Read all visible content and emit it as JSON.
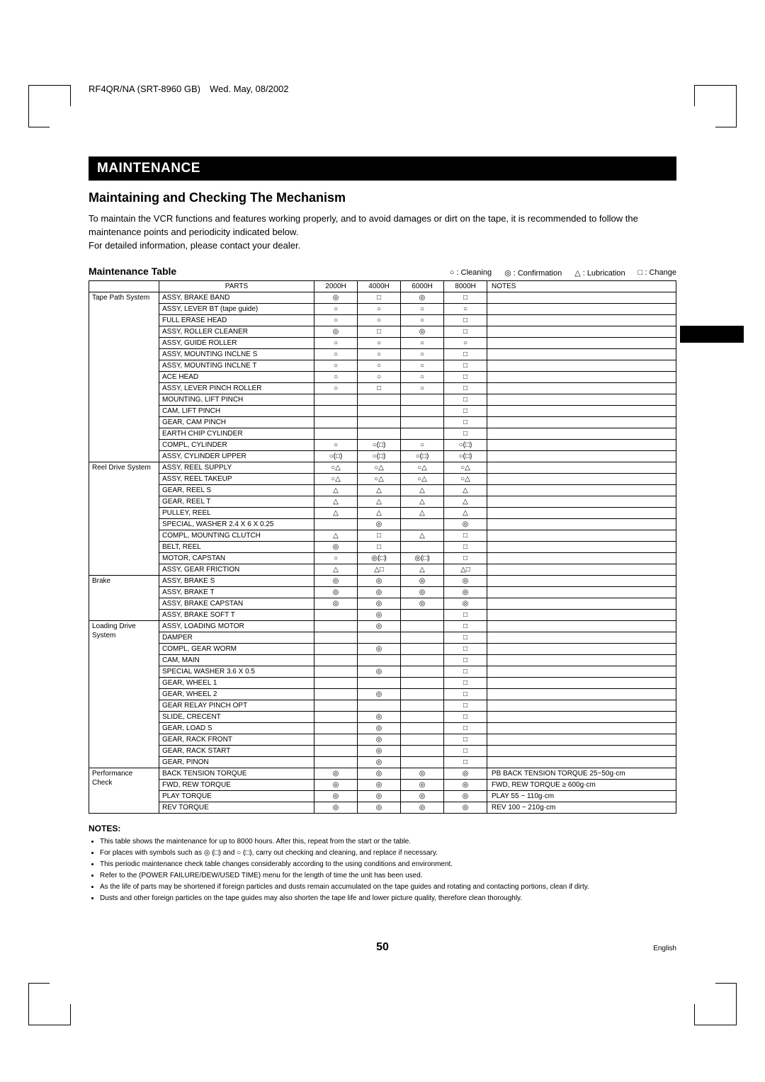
{
  "header": "RF4QR/NA (SRT-8960 GB) Wed. May, 08/2002",
  "section": "MAINTENANCE",
  "subtitle": "Maintaining and Checking The Mechanism",
  "intro": "To maintain the VCR functions and features working properly, and to avoid damages or dirt on the tape, it is recommended to follow the maintenance points and periodicity indicated below.\nFor detailed information, please contact your dealer.",
  "tableTitle": "Maintenance Table",
  "legend": {
    "cleaning": "○ : Cleaning",
    "confirmation": "◎ : Confirmation",
    "lubrication": "△ : Lubrication",
    "change": "□ : Change"
  },
  "columns": [
    "",
    "PARTS",
    "2000H",
    "4000H",
    "6000H",
    "8000H",
    "NOTES"
  ],
  "groups": [
    {
      "system": "Tape Path System",
      "rows": [
        {
          "part": "ASSY, BRAKE BAND",
          "h": [
            "◎",
            "□",
            "◎",
            "□"
          ],
          "note": ""
        },
        {
          "part": "ASSY, LEVER BT (tape guide)",
          "h": [
            "○",
            "○",
            "○",
            "○"
          ],
          "note": ""
        },
        {
          "part": "FULL ERASE HEAD",
          "h": [
            "○",
            "○",
            "○",
            "□"
          ],
          "note": ""
        },
        {
          "part": "ASSY, ROLLER CLEANER",
          "h": [
            "◎",
            "□",
            "◎",
            "□"
          ],
          "note": ""
        },
        {
          "part": "ASSY, GUIDE ROLLER",
          "h": [
            "○",
            "○",
            "○",
            "○"
          ],
          "note": ""
        },
        {
          "part": "ASSY, MOUNTING INCLNE S",
          "h": [
            "○",
            "○",
            "○",
            "□"
          ],
          "note": ""
        },
        {
          "part": "ASSY, MOUNTING INCLNE T",
          "h": [
            "○",
            "○",
            "○",
            "□"
          ],
          "note": ""
        },
        {
          "part": "ACE HEAD",
          "h": [
            "○",
            "○",
            "○",
            "□"
          ],
          "note": ""
        },
        {
          "part": "ASSY, LEVER PINCH ROLLER",
          "h": [
            "○",
            "□",
            "○",
            "□"
          ],
          "note": ""
        },
        {
          "part": "MOUNTING, LIFT PINCH",
          "h": [
            "",
            "",
            "",
            "□"
          ],
          "note": ""
        },
        {
          "part": "CAM, LIFT PINCH",
          "h": [
            "",
            "",
            "",
            "□"
          ],
          "note": ""
        },
        {
          "part": "GEAR, CAM PINCH",
          "h": [
            "",
            "",
            "",
            "□"
          ],
          "note": ""
        },
        {
          "part": "EARTH CHIP CYLINDER",
          "h": [
            "",
            "",
            "",
            "□"
          ],
          "note": ""
        },
        {
          "part": "COMPL, CYLINDER",
          "h": [
            "○",
            "○(□)",
            "○",
            "○(□)"
          ],
          "note": ""
        },
        {
          "part": "ASSY, CYLINDER UPPER",
          "h": [
            "○(□)",
            "○(□)",
            "○(□)",
            "○(□)"
          ],
          "note": ""
        }
      ]
    },
    {
      "system": "Reel Drive System",
      "rows": [
        {
          "part": "ASSY, REEL SUPPLY",
          "h": [
            "○△",
            "○△",
            "○△",
            "○△"
          ],
          "note": ""
        },
        {
          "part": "ASSY, REEL TAKEUP",
          "h": [
            "○△",
            "○△",
            "○△",
            "○△"
          ],
          "note": ""
        },
        {
          "part": "GEAR, REEL S",
          "h": [
            "△",
            "△",
            "△",
            "△"
          ],
          "note": ""
        },
        {
          "part": "GEAR, REEL T",
          "h": [
            "△",
            "△",
            "△",
            "△"
          ],
          "note": ""
        },
        {
          "part": "PULLEY, REEL",
          "h": [
            "△",
            "△",
            "△",
            "△"
          ],
          "note": ""
        },
        {
          "part": "SPECIAL, WASHER 2.4 X 6 X 0.25",
          "h": [
            "",
            "◎",
            "",
            "◎"
          ],
          "note": ""
        },
        {
          "part": "COMPL, MOUNTING CLUTCH",
          "h": [
            "△",
            "□",
            "△",
            "□"
          ],
          "note": ""
        },
        {
          "part": "BELT, REEL",
          "h": [
            "◎",
            "□",
            "",
            "□"
          ],
          "note": ""
        },
        {
          "part": "MOTOR, CAPSTAN",
          "h": [
            "○",
            "◎(□)",
            "◎(□)",
            "□"
          ],
          "note": ""
        },
        {
          "part": "ASSY, GEAR FRICTION",
          "h": [
            "△",
            "△□",
            "△",
            "△□"
          ],
          "note": ""
        }
      ]
    },
    {
      "system": "Brake",
      "rows": [
        {
          "part": "ASSY, BRAKE S",
          "h": [
            "◎",
            "◎",
            "◎",
            "◎"
          ],
          "note": ""
        },
        {
          "part": "ASSY, BRAKE T",
          "h": [
            "◎",
            "◎",
            "◎",
            "◎"
          ],
          "note": ""
        },
        {
          "part": "ASSY, BRAKE CAPSTAN",
          "h": [
            "◎",
            "◎",
            "◎",
            "◎"
          ],
          "note": ""
        },
        {
          "part": "ASSY, BRAKE SOFT T",
          "h": [
            "",
            "◎",
            "",
            "□"
          ],
          "note": ""
        }
      ]
    },
    {
      "system": "Loading Drive System",
      "rows": [
        {
          "part": "ASSY, LOADING MOTOR",
          "h": [
            "",
            "◎",
            "",
            "□"
          ],
          "note": ""
        },
        {
          "part": "DAMPER",
          "h": [
            "",
            "",
            "",
            "□"
          ],
          "note": ""
        },
        {
          "part": "COMPL, GEAR WORM",
          "h": [
            "",
            "◎",
            "",
            "□"
          ],
          "note": ""
        },
        {
          "part": "CAM, MAIN",
          "h": [
            "",
            "",
            "",
            "□"
          ],
          "note": ""
        },
        {
          "part": "SPECIAL WASHER 3.6 X 0.5",
          "h": [
            "",
            "◎",
            "",
            "□"
          ],
          "note": ""
        },
        {
          "part": "GEAR, WHEEL 1",
          "h": [
            "",
            "",
            "",
            "□"
          ],
          "note": ""
        },
        {
          "part": "GEAR, WHEEL 2",
          "h": [
            "",
            "◎",
            "",
            "□"
          ],
          "note": ""
        },
        {
          "part": "GEAR RELAY PINCH OPT",
          "h": [
            "",
            "",
            "",
            "□"
          ],
          "note": ""
        },
        {
          "part": "SLIDE, CRECENT",
          "h": [
            "",
            "◎",
            "",
            "□"
          ],
          "note": ""
        },
        {
          "part": "GEAR, LOAD S",
          "h": [
            "",
            "◎",
            "",
            "□"
          ],
          "note": ""
        },
        {
          "part": "GEAR, RACK FRONT",
          "h": [
            "",
            "◎",
            "",
            "□"
          ],
          "note": ""
        },
        {
          "part": "GEAR, RACK START",
          "h": [
            "",
            "◎",
            "",
            "□"
          ],
          "note": ""
        },
        {
          "part": "GEAR, PINON",
          "h": [
            "",
            "◎",
            "",
            "□"
          ],
          "note": ""
        }
      ]
    },
    {
      "system": "Performance Check",
      "rows": [
        {
          "part": "BACK TENSION TORQUE",
          "h": [
            "◎",
            "◎",
            "◎",
            "◎"
          ],
          "note": "PB BACK TENSION TORQUE 25~50g·cm"
        },
        {
          "part": "FWD, REW TORQUE",
          "h": [
            "◎",
            "◎",
            "◎",
            "◎"
          ],
          "note": "FWD, REW TORQUE ≥ 600g·cm"
        },
        {
          "part": "PLAY TORQUE",
          "h": [
            "◎",
            "◎",
            "◎",
            "◎"
          ],
          "note": "PLAY 55 ~ 110g·cm"
        },
        {
          "part": "REV TORQUE",
          "h": [
            "◎",
            "◎",
            "◎",
            "◎"
          ],
          "note": "REV 100 ~ 210g·cm"
        }
      ]
    }
  ],
  "notesHeading": "NOTES:",
  "notes": [
    "This table shows the maintenance for up to 8000 hours. After this, repeat from the start or the table.",
    "For places with symbols such as ◎ (□) and ○ (□), carry out checking and cleaning, and replace if necessary.",
    "This periodic maintenance check table changes considerably according to the using conditions and environment.",
    "Refer to the (POWER FAILURE/DEW/USED TIME) menu for the length of time the unit has been used.",
    "As the life of parts may be shortened if foreign particles and dusts remain accumulated on the tape guides and rotating and contacting portions, clean if dirty.",
    "Dusts and other foreign particles on the tape guides may also shorten the tape life and lower picture quality, therefore clean thoroughly."
  ],
  "pageNumber": "50",
  "language": "English"
}
